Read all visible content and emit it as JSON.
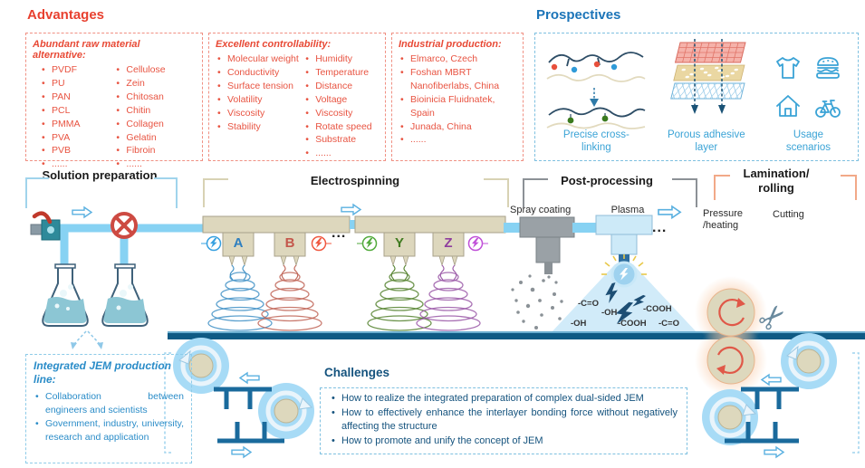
{
  "palette": {
    "red_accent": "#e8402f",
    "blue_heading": "#1b74b8",
    "lightblue_caption": "#3aa3d6",
    "dark_blue_text": "#15537e",
    "spinneret_a": "#2e7fc0",
    "spinneret_b": "#c4574c",
    "spinneret_y": "#3f7a1f",
    "spinneret_z": "#8e3d9e"
  },
  "advantages": {
    "title": "Advantages",
    "raw_materials": {
      "heading": "Abundant raw material alternative:",
      "col1": [
        "PVDF",
        "PU",
        "PAN",
        "PCL",
        "PMMA",
        "PVA",
        "PVB",
        "......"
      ],
      "col2": [
        "Cellulose",
        "Zein",
        "Chitosan",
        "Chitin",
        "Collagen",
        "Gelatin",
        "Fibroin",
        "......"
      ]
    },
    "controllability": {
      "heading": "Excellent controllability:",
      "col1": [
        "Molecular weight",
        "Conductivity",
        "Surface tension",
        "Volatility",
        "Viscosity",
        "Stability"
      ],
      "col2": [
        "Humidity",
        "Temperature",
        "Distance",
        "Voltage",
        "Viscosity",
        "Rotate speed",
        "Substrate",
        "......"
      ]
    },
    "industrial": {
      "heading": "Industrial production:",
      "items": [
        "Elmarco, Czech",
        "Foshan MBRT Nanofiberlabs, China",
        "Bioinicia Fluidnatek, Spain",
        "Junada, China",
        "......"
      ]
    }
  },
  "prospectives": {
    "title": "Prospectives",
    "captions": [
      "Precise cross-linking",
      "Porous adhesive layer",
      "Usage scenarios"
    ]
  },
  "stages": {
    "solution": "Solution preparation",
    "electrospinning": "Electrospinning",
    "post_processing": "Post-processing",
    "lamination": "Lamination/ rolling"
  },
  "machine": {
    "spinneret_labels": [
      "A",
      "B",
      "Y",
      "Z"
    ],
    "ellipsis_1": "...",
    "ellipsis_2": "...",
    "spray_label": "Spray coating",
    "plasma_label": "Plasma",
    "pressure_label": "Pressure /heating",
    "cutting_label": "Cutting",
    "functional_groups": [
      "-C=O",
      "-OH",
      "-OH",
      "-COOH",
      "-COOH",
      "-C=O"
    ]
  },
  "integrated_line": {
    "heading": "Integrated JEM production line:",
    "bullets": [
      "Collaboration between engineers and scientists",
      "Government, industry, university, research and application"
    ]
  },
  "challenges": {
    "title": "Challenges",
    "bullets": [
      "How to realize the integrated preparation of complex dual-sided JEM",
      "How to effectively enhance the interlayer bonding force without negatively affecting the structure",
      "How to promote and unify the concept of JEM"
    ]
  }
}
